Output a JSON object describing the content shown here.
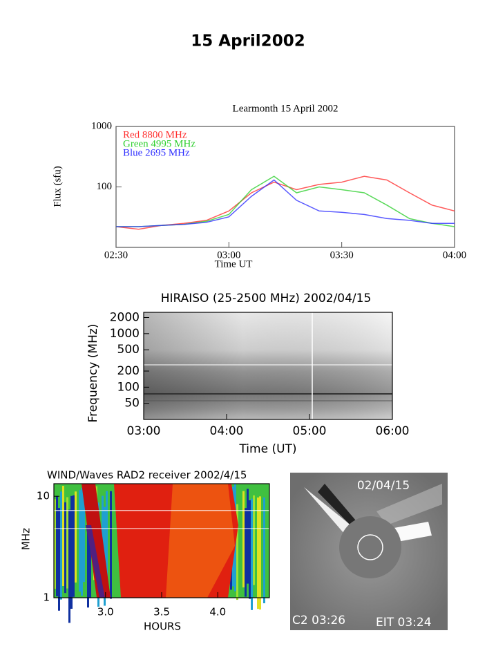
{
  "title": "15 April2002",
  "chart_data": [
    {
      "type": "line",
      "title": "Learmonth 15 April 2002",
      "x_label": "Time UT",
      "y_label": "Flux (sfu)",
      "x": [
        2.5,
        2.6,
        2.7,
        2.8,
        2.9,
        3.0,
        3.1,
        3.2,
        3.3,
        3.4,
        3.5,
        3.6,
        3.7,
        3.8,
        3.9,
        4.0
      ],
      "series": [
        {
          "name": "Red 8800 MHz",
          "color": "#ff3030",
          "values": [
            22,
            20,
            23,
            25,
            28,
            40,
            80,
            120,
            90,
            110,
            120,
            150,
            130,
            80,
            50,
            40
          ]
        },
        {
          "name": "Green 4995 MHz",
          "color": "#30d030",
          "values": [
            22,
            22,
            23,
            24,
            27,
            35,
            90,
            150,
            80,
            100,
            90,
            80,
            50,
            30,
            25,
            22
          ]
        },
        {
          "name": "Blue 2695 MHz",
          "color": "#3030ff",
          "values": [
            22,
            22,
            23,
            24,
            26,
            32,
            70,
            130,
            60,
            40,
            38,
            35,
            30,
            28,
            25,
            25
          ]
        }
      ],
      "xlim": [
        2.5,
        4.0
      ],
      "xticks": [
        {
          "value": 2.5,
          "label": "02:30"
        },
        {
          "value": 3.0,
          "label": "03:00"
        },
        {
          "value": 3.5,
          "label": "03:30"
        },
        {
          "value": 4.0,
          "label": "04:00"
        }
      ],
      "ylim": [
        10,
        1000
      ],
      "yticks": [
        100,
        1000
      ],
      "log_y": true,
      "grid": false
    },
    {
      "type": "spectrogram",
      "title": "HIRAISO (25-2500 MHz) 2002/04/15",
      "x_label": "Time (UT)",
      "y_label": "Frequency (MHz)",
      "xlim": [
        3,
        6
      ],
      "xticks": [
        {
          "value": 3,
          "label": "03:00"
        },
        {
          "value": 4,
          "label": "04:00"
        },
        {
          "value": 5,
          "label": "05:00"
        },
        {
          "value": 6,
          "label": "06:00"
        }
      ],
      "ylim": [
        25,
        2500
      ],
      "yticks": [
        50,
        100,
        200,
        500,
        1000,
        2000
      ],
      "log_y": true
    },
    {
      "type": "spectrogram",
      "title": "WIND/Waves RAD2 receiver 2002/4/15",
      "x_label": "HOURS",
      "y_label": "MHz",
      "xlim": [
        2.54,
        4.46
      ],
      "xticks": [
        {
          "value": 3,
          "label": "3.0"
        },
        {
          "value": 3.5,
          "label": "3.5"
        },
        {
          "value": 4,
          "label": "4.0"
        }
      ],
      "ylim": [
        1,
        13.3
      ],
      "yticks": [
        1,
        10
      ],
      "log_y": true
    }
  ],
  "coronagraph": {
    "date": "02/04/15",
    "left_label": "C2 03:26",
    "right_label": "EIT 03:24"
  }
}
